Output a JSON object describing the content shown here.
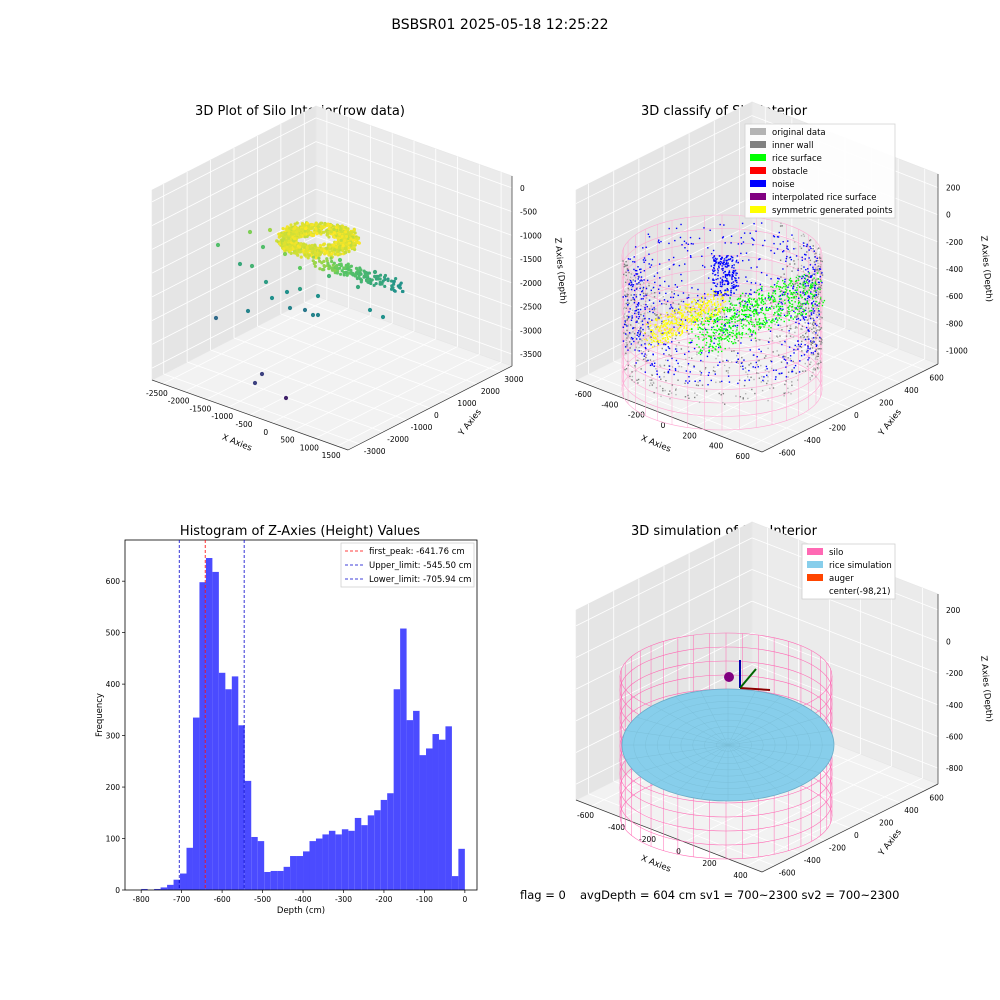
{
  "figure": {
    "title": "BSBSR01 2025-05-18 12:25:22"
  },
  "panels": {
    "raw": {
      "title": "3D Plot of Silo Interior(row data)",
      "xlabel": "X Axies",
      "ylabel": "Y Axies",
      "zlabel": "Z Axies (Depth)",
      "xticks": [
        "-2500",
        "-2000",
        "-1500",
        "-1000",
        "-500",
        "0",
        "500",
        "1000",
        "1500"
      ],
      "yticks": [
        "-3000",
        "-2000",
        "-1000",
        "0",
        "1000",
        "2000",
        "3000"
      ],
      "zticks": [
        "0",
        "-500",
        "-1000",
        "-1500",
        "-2000",
        "-2500",
        "-3000",
        "-3500"
      ]
    },
    "classify": {
      "title": "3D classify of Silo Interior",
      "xlabel": "X Axies",
      "ylabel": "Y Axies",
      "zlabel": "Z Axies (Depth)",
      "xticks": [
        "-600",
        "-400",
        "-200",
        "0",
        "200",
        "400",
        "600"
      ],
      "yticks": [
        "-600",
        "-400",
        "-200",
        "0",
        "200",
        "400",
        "600"
      ],
      "zticks": [
        "200",
        "0",
        "-200",
        "-400",
        "-600",
        "-800",
        "-1000"
      ],
      "legend": [
        {
          "label": "original data",
          "color": "#b4b4b4"
        },
        {
          "label": "inner wall",
          "color": "#808080"
        },
        {
          "label": "rice surface",
          "color": "#00ff00"
        },
        {
          "label": "obstacle",
          "color": "#ff0000"
        },
        {
          "label": "noise",
          "color": "#0000ff"
        },
        {
          "label": "interpolated rice surface",
          "color": "#800080"
        },
        {
          "label": "symmetric generated points",
          "color": "#ffff00"
        }
      ]
    },
    "simulation": {
      "title": "3D simulation of Silo Interior",
      "xlabel": "X Axies",
      "ylabel": "Y Axies",
      "zlabel": "Z Axies (Depth)",
      "xticks": [
        "-600",
        "-400",
        "-200",
        "0",
        "200",
        "400"
      ],
      "yticks": [
        "-600",
        "-400",
        "-200",
        "0",
        "200",
        "400",
        "600"
      ],
      "zticks": [
        "200",
        "0",
        "-200",
        "-400",
        "-600",
        "-800"
      ],
      "legend": [
        {
          "label": "silo",
          "color": "#ff69b4"
        },
        {
          "label": "rice simulation",
          "color": "#87ceeb"
        },
        {
          "label": "auger",
          "color": "#ff4500"
        },
        {
          "label": "center(-98,21)",
          "color": ""
        }
      ]
    }
  },
  "footer": {
    "flag": "flag = 0",
    "avg": "avgDepth = 604 cm  sv1 = 700~2300  sv2 = 700~2300"
  },
  "chart_data": [
    {
      "type": "bar",
      "title": "Histogram of Z-Axies (Height) Values",
      "xlabel": "Depth (cm)",
      "ylabel": "Frequency",
      "xlim": [
        -840,
        30
      ],
      "ylim": [
        0,
        680
      ],
      "bin_width": 16,
      "xticks": [
        -800,
        -700,
        -600,
        -500,
        -400,
        -300,
        -200,
        -100,
        0
      ],
      "yticks": [
        0,
        100,
        200,
        300,
        400,
        500,
        600
      ],
      "color": "#4b4bff",
      "bins": [
        {
          "x": -800,
          "v": 2
        },
        {
          "x": -784,
          "v": 0
        },
        {
          "x": -768,
          "v": 2
        },
        {
          "x": -752,
          "v": 5
        },
        {
          "x": -736,
          "v": 10
        },
        {
          "x": -720,
          "v": 20
        },
        {
          "x": -704,
          "v": 32
        },
        {
          "x": -688,
          "v": 82
        },
        {
          "x": -672,
          "v": 335
        },
        {
          "x": -656,
          "v": 598
        },
        {
          "x": -640,
          "v": 645
        },
        {
          "x": -624,
          "v": 618
        },
        {
          "x": -608,
          "v": 422
        },
        {
          "x": -592,
          "v": 390
        },
        {
          "x": -576,
          "v": 415
        },
        {
          "x": -560,
          "v": 320
        },
        {
          "x": -544,
          "v": 212
        },
        {
          "x": -528,
          "v": 103
        },
        {
          "x": -512,
          "v": 95
        },
        {
          "x": -496,
          "v": 35
        },
        {
          "x": -480,
          "v": 37
        },
        {
          "x": -464,
          "v": 37
        },
        {
          "x": -448,
          "v": 45
        },
        {
          "x": -432,
          "v": 66
        },
        {
          "x": -416,
          "v": 66
        },
        {
          "x": -400,
          "v": 75
        },
        {
          "x": -384,
          "v": 95
        },
        {
          "x": -368,
          "v": 100
        },
        {
          "x": -352,
          "v": 108
        },
        {
          "x": -336,
          "v": 115
        },
        {
          "x": -320,
          "v": 108
        },
        {
          "x": -304,
          "v": 118
        },
        {
          "x": -288,
          "v": 115
        },
        {
          "x": -272,
          "v": 140
        },
        {
          "x": -256,
          "v": 126
        },
        {
          "x": -240,
          "v": 145
        },
        {
          "x": -224,
          "v": 155
        },
        {
          "x": -208,
          "v": 175
        },
        {
          "x": -192,
          "v": 188
        },
        {
          "x": -176,
          "v": 390
        },
        {
          "x": -160,
          "v": 508
        },
        {
          "x": -144,
          "v": 330
        },
        {
          "x": -128,
          "v": 348
        },
        {
          "x": -112,
          "v": 262
        },
        {
          "x": -96,
          "v": 275
        },
        {
          "x": -80,
          "v": 303
        },
        {
          "x": -64,
          "v": 292
        },
        {
          "x": -48,
          "v": 318
        },
        {
          "x": -32,
          "v": 27
        },
        {
          "x": -16,
          "v": 80
        }
      ],
      "vlines": [
        {
          "x": -641.76,
          "color": "#ff0000",
          "label": "first_peak: -641.76 cm"
        },
        {
          "x": -545.5,
          "color": "#0000cc",
          "label": "Upper_limit: -545.50 cm"
        },
        {
          "x": -705.94,
          "color": "#0000cc",
          "label": "Lower_limit: -705.94 cm"
        }
      ]
    }
  ]
}
